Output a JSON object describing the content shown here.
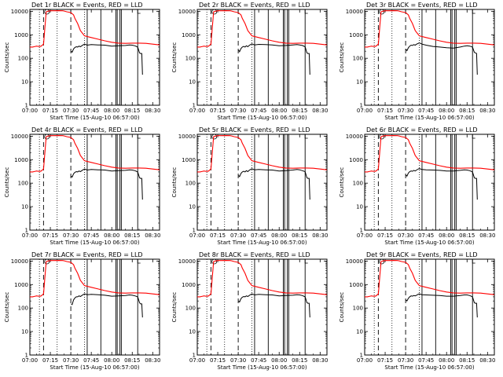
{
  "chart_data": {
    "type": "line",
    "layout": {
      "rows": 3,
      "cols": 3
    },
    "time_window": [
      "07:00",
      "08:35"
    ],
    "xtick_labels": [
      "07:00",
      "07:15",
      "07:30",
      "07:45",
      "08:00",
      "08:15",
      "08:30"
    ],
    "xlabel": "Start Time (15-Aug-10 06:57:00)",
    "ylabel": "Counts/sec",
    "yscale": "log",
    "ylim": [
      1,
      12000
    ],
    "ytick_values": [
      1,
      10,
      100,
      1000,
      10000
    ],
    "ytick_labels": [
      "1",
      "10",
      "100",
      "1000",
      "10000"
    ],
    "colors": {
      "events": "#000000",
      "lld": "#ff0000"
    },
    "legend_text": "BLACK = Events, RED = LLD",
    "vertical_markers": {
      "dotted_minutes": [
        7,
        20,
        40
      ],
      "dashed_minutes": [
        10,
        30
      ],
      "solid_minutes": [
        42,
        52,
        63,
        64,
        66,
        67,
        79
      ]
    },
    "series": [
      {
        "name": "LLD",
        "x_minutes": [
          0,
          1,
          2,
          3,
          4,
          5,
          6,
          8,
          10,
          11,
          12,
          13,
          15,
          18,
          21,
          24,
          25,
          27,
          30,
          32,
          33,
          35,
          37,
          40,
          45,
          50,
          55,
          60,
          65,
          70,
          75,
          80,
          85,
          90,
          95
        ],
        "y": [
          300,
          300,
          300,
          310,
          320,
          330,
          320,
          320,
          400,
          2000,
          9500,
          10000,
          10500,
          10500,
          10600,
          10500,
          10300,
          9500,
          8800,
          7000,
          5000,
          3000,
          1500,
          900,
          760,
          650,
          550,
          480,
          440,
          430,
          440,
          440,
          430,
          400,
          370
        ]
      },
      {
        "name": "Events",
        "x_minutes": [
          0,
          1,
          2,
          3,
          4,
          5,
          6,
          8,
          10,
          11,
          12,
          13,
          15,
          18,
          21,
          24,
          25,
          27,
          30,
          32,
          33,
          35,
          37,
          40,
          45,
          50,
          55,
          60,
          65,
          70,
          75,
          80
        ],
        "y": [
          300,
          300,
          300,
          310,
          320,
          330,
          320,
          320,
          400,
          2000,
          9500,
          10000,
          10500,
          10500,
          10600,
          10500,
          10300,
          9500,
          8800,
          7000,
          5000,
          3000,
          1500,
          900,
          760,
          650,
          550,
          480,
          440,
          430,
          440,
          440
        ]
      }
    ],
    "panels": [
      {
        "title": "Det 1r BLACK = Events, RED = LLD",
        "events_on": [
          30.3,
          80.5
        ],
        "events_gap": [
          79,
          80.3
        ],
        "events_x": [
          30.3,
          31,
          32,
          33,
          34,
          35,
          36,
          37,
          38,
          39,
          40,
          42,
          45,
          50,
          55,
          60,
          65,
          70,
          73,
          75,
          77,
          79,
          80.3,
          81,
          82,
          82.5
        ],
        "events_y": [
          200,
          180,
          250,
          290,
          310,
          300,
          330,
          310,
          340,
          370,
          400,
          360,
          380,
          370,
          360,
          330,
          340,
          350,
          370,
          360,
          340,
          300,
          170,
          160,
          160,
          20
        ]
      },
      {
        "title": "Det 2r BLACK = Events, RED = LLD",
        "events_x": [
          30.3,
          31,
          32,
          33,
          34,
          35,
          36,
          37,
          38,
          39,
          40,
          42,
          45,
          50,
          55,
          60,
          65,
          70,
          73,
          75,
          77,
          79,
          80.3,
          81,
          82,
          82.5
        ],
        "events_y": [
          220,
          190,
          260,
          300,
          320,
          300,
          340,
          310,
          350,
          380,
          410,
          370,
          390,
          380,
          370,
          340,
          350,
          370,
          380,
          370,
          350,
          310,
          170,
          160,
          160,
          20
        ]
      },
      {
        "title": "Det 3r BLACK = Events, RED = LLD",
        "events_x": [
          30.3,
          31,
          32,
          33,
          34,
          35,
          36,
          37,
          38,
          39,
          40,
          42,
          45,
          50,
          55,
          60,
          65,
          70,
          73,
          75,
          77,
          79,
          80.3,
          81,
          82,
          82.5
        ],
        "events_y": [
          240,
          210,
          280,
          330,
          360,
          350,
          380,
          360,
          400,
          420,
          450,
          400,
          360,
          320,
          300,
          280,
          270,
          300,
          330,
          340,
          330,
          300,
          180,
          170,
          160,
          20
        ]
      },
      {
        "title": "Det 4r BLACK = Events, RED = LLD",
        "events_x": [
          30.3,
          31,
          32,
          33,
          34,
          35,
          36,
          37,
          38,
          39,
          40,
          42,
          45,
          50,
          55,
          60,
          65,
          70,
          73,
          75,
          77,
          79,
          80.3,
          81,
          82,
          82.5
        ],
        "events_y": [
          200,
          180,
          250,
          290,
          310,
          300,
          330,
          310,
          340,
          370,
          400,
          360,
          380,
          370,
          360,
          330,
          340,
          350,
          370,
          360,
          340,
          300,
          170,
          160,
          160,
          20
        ]
      },
      {
        "title": "Det 5r BLACK = Events, RED = LLD",
        "events_x": [
          30.3,
          31,
          32,
          33,
          34,
          35,
          36,
          37,
          38,
          39,
          40,
          42,
          45,
          50,
          55,
          60,
          65,
          70,
          73,
          75,
          77,
          79,
          80.3,
          81,
          82,
          82.5
        ],
        "events_y": [
          210,
          190,
          260,
          300,
          320,
          300,
          340,
          310,
          350,
          380,
          410,
          370,
          380,
          370,
          360,
          330,
          340,
          360,
          380,
          370,
          340,
          310,
          170,
          160,
          160,
          20
        ]
      },
      {
        "title": "Det 6r BLACK = Events, RED = LLD",
        "events_x": [
          30.3,
          31,
          32,
          33,
          34,
          35,
          36,
          37,
          38,
          39,
          40,
          42,
          45,
          50,
          55,
          60,
          65,
          70,
          73,
          75,
          77,
          79,
          80.3,
          81,
          82,
          82.5
        ],
        "events_y": [
          220,
          200,
          270,
          310,
          330,
          320,
          350,
          330,
          360,
          390,
          420,
          380,
          370,
          360,
          350,
          330,
          330,
          350,
          370,
          360,
          340,
          300,
          170,
          160,
          160,
          20
        ]
      },
      {
        "title": "Det 7r BLACK = Events, RED = LLD",
        "events_x": [
          30.3,
          31,
          32,
          33,
          34,
          35,
          36,
          37,
          38,
          39,
          40,
          42,
          45,
          50,
          55,
          60,
          65,
          70,
          73,
          75,
          77,
          79,
          80.3,
          81,
          82,
          82.5
        ],
        "events_y": [
          150,
          140,
          220,
          270,
          300,
          300,
          330,
          310,
          340,
          370,
          400,
          370,
          380,
          370,
          350,
          320,
          330,
          340,
          360,
          350,
          330,
          300,
          170,
          150,
          150,
          40
        ]
      },
      {
        "title": "Det 8r BLACK = Events, RED = LLD",
        "events_x": [
          30.3,
          31,
          32,
          33,
          34,
          35,
          36,
          37,
          38,
          39,
          40,
          42,
          45,
          50,
          55,
          60,
          65,
          70,
          73,
          75,
          77,
          79,
          80.3,
          81,
          82,
          82.5
        ],
        "events_y": [
          200,
          180,
          250,
          290,
          310,
          300,
          330,
          310,
          340,
          370,
          400,
          360,
          380,
          370,
          360,
          330,
          340,
          350,
          370,
          360,
          340,
          300,
          170,
          160,
          160,
          40
        ]
      },
      {
        "title": "Det 9r BLACK = Events, RED = LLD",
        "events_x": [
          30.3,
          31,
          32,
          33,
          34,
          35,
          36,
          37,
          38,
          39,
          40,
          42,
          45,
          50,
          55,
          60,
          65,
          70,
          73,
          75,
          77,
          79,
          80.3,
          81,
          82,
          82.5
        ],
        "events_y": [
          220,
          200,
          260,
          300,
          330,
          320,
          340,
          330,
          350,
          380,
          400,
          370,
          360,
          350,
          340,
          320,
          320,
          340,
          360,
          360,
          340,
          300,
          170,
          160,
          160,
          40
        ]
      }
    ]
  }
}
